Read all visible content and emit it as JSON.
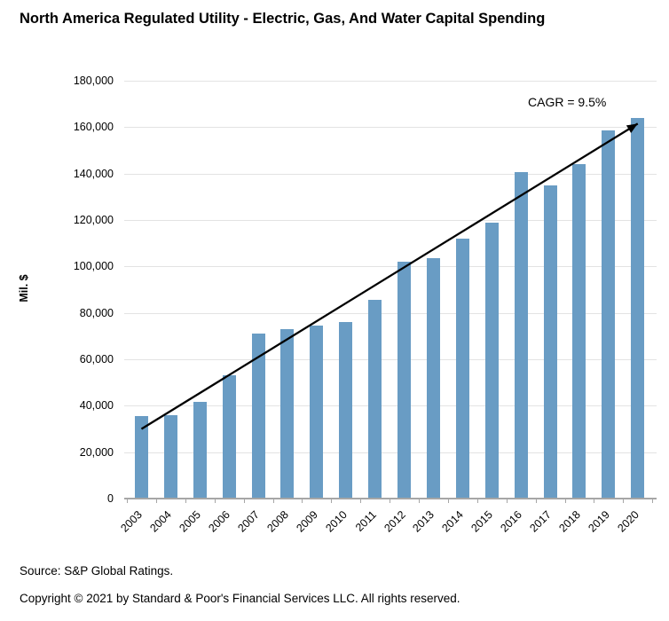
{
  "title": "North America Regulated Utility - Electric, Gas, And Water Capital Spending",
  "chart_data": {
    "type": "bar",
    "title": "North America Regulated Utility - Electric, Gas, And Water Capital Spending",
    "xlabel": "",
    "ylabel": "Mil. $",
    "categories": [
      "2003",
      "2004",
      "2005",
      "2006",
      "2007",
      "2008",
      "2009",
      "2010",
      "2011",
      "2012",
      "2013",
      "2014",
      "2015",
      "2016",
      "2017",
      "2018",
      "2019",
      "2020"
    ],
    "values": [
      35500,
      36000,
      41500,
      53000,
      71000,
      73000,
      74500,
      76000,
      85500,
      102000,
      103500,
      112000,
      119000,
      140500,
      135000,
      144000,
      158500,
      164000
    ],
    "ylim": [
      0,
      180000
    ],
    "ytick_step": 20000,
    "ytick_labels": [
      "0",
      "20,000",
      "40,000",
      "60,000",
      "80,000",
      "100,000",
      "120,000",
      "140,000",
      "160,000",
      "180,000"
    ],
    "grid": true,
    "legend": false,
    "annotation": "CAGR = 9.5%",
    "trend_line": {
      "start_year": "2003",
      "start_value": 30000,
      "end_year": "2020",
      "end_value": 161500
    }
  },
  "colors": {
    "bar": "#699CC4",
    "gridline": "#E3E3E3",
    "axis": "#A6A6A6",
    "trend": "#000000",
    "text": "#000000"
  },
  "footer": {
    "source": "Source: S&P Global Ratings.",
    "copyright": "Copyright © 2021 by Standard & Poor's Financial Services LLC. All rights reserved."
  }
}
